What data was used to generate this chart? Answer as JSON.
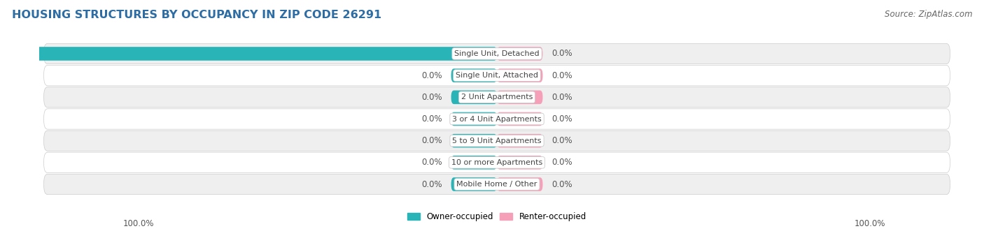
{
  "title": "HOUSING STRUCTURES BY OCCUPANCY IN ZIP CODE 26291",
  "source_text": "Source: ZipAtlas.com",
  "categories": [
    "Single Unit, Detached",
    "Single Unit, Attached",
    "2 Unit Apartments",
    "3 or 4 Unit Apartments",
    "5 to 9 Unit Apartments",
    "10 or more Apartments",
    "Mobile Home / Other"
  ],
  "owner_values": [
    100.0,
    0.0,
    0.0,
    0.0,
    0.0,
    0.0,
    0.0
  ],
  "renter_values": [
    0.0,
    0.0,
    0.0,
    0.0,
    0.0,
    0.0,
    0.0
  ],
  "owner_color": "#29b5b8",
  "renter_color": "#f5a0b8",
  "title_color": "#2e6da4",
  "background_color": "#ffffff",
  "row_odd_color": "#efefef",
  "row_even_color": "#ffffff",
  "legend_owner": "Owner-occupied",
  "legend_renter": "Renter-occupied",
  "value_color": "#555555",
  "label_color": "#444444",
  "source_color": "#666666"
}
